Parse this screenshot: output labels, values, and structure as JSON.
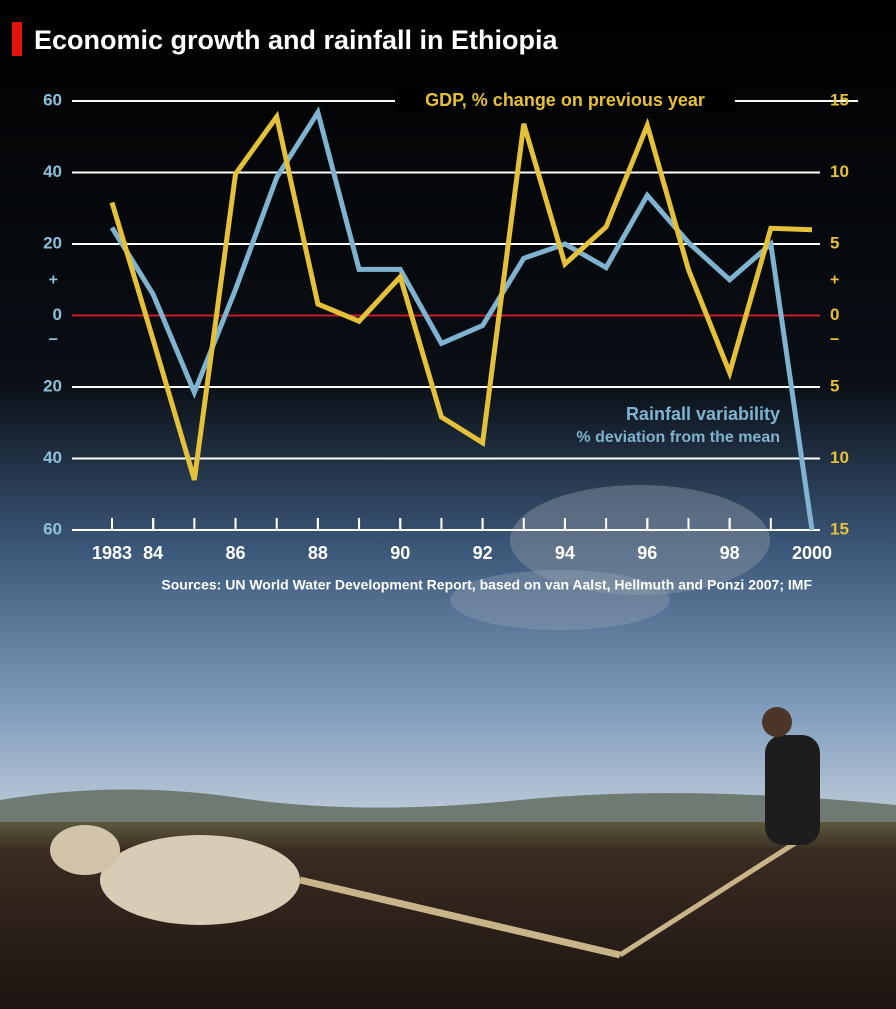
{
  "chart_data": {
    "type": "line",
    "title": "Economic growth and rainfall in Ethiopia",
    "x": [
      1983,
      1984,
      1985,
      1986,
      1987,
      1988,
      1989,
      1990,
      1991,
      1992,
      1993,
      1994,
      1995,
      1996,
      1997,
      1998,
      1999,
      2000
    ],
    "xlim": [
      1983,
      2000
    ],
    "xticks": [
      {
        "value": 1983,
        "label": "1983"
      },
      {
        "value": 1984,
        "label": "84"
      },
      {
        "value": 1986,
        "label": "86"
      },
      {
        "value": 1988,
        "label": "88"
      },
      {
        "value": 1990,
        "label": "90"
      },
      {
        "value": 1992,
        "label": "92"
      },
      {
        "value": 1994,
        "label": "94"
      },
      {
        "value": 1996,
        "label": "96"
      },
      {
        "value": 1998,
        "label": "98"
      },
      {
        "value": 2000,
        "label": "2000"
      }
    ],
    "ylim": [
      -60,
      60
    ],
    "yticks": [
      60,
      40,
      20,
      0,
      {
        "value": -20,
        "label": "20"
      },
      {
        "value": -40,
        "label": "40"
      },
      {
        "value": -60,
        "label": "60"
      }
    ],
    "y2lim": [
      -15,
      15
    ],
    "y2ticks": [
      15,
      10,
      5,
      0,
      {
        "value": -5,
        "label": "5"
      },
      {
        "value": -10,
        "label": "10"
      },
      {
        "value": -15,
        "label": "15"
      }
    ],
    "sign_labels": [
      "+",
      "−"
    ],
    "grid": true,
    "series": [
      {
        "name": "Rainfall variability",
        "color": "#7fb3cf",
        "axis": "y",
        "values": [
          24.6,
          5.9,
          -21.5,
          7.3,
          38.6,
          56.8,
          12.9,
          12.9,
          -7.8,
          -2.8,
          16,
          20,
          13.4,
          33.6,
          20.4,
          10,
          20,
          -60
        ]
      },
      {
        "name": "GDP, % change on previous year",
        "color": "#e5c03a",
        "axis": "y2",
        "values": [
          7.9,
          -1.7,
          -11.5,
          9.9,
          13.9,
          0.8,
          -0.4,
          2.7,
          -7.1,
          -8.9,
          13.4,
          3.6,
          6.2,
          13.3,
          3.2,
          -4.0,
          6.1,
          6.0
        ]
      }
    ],
    "annotation": "% deviation from the mean",
    "source": "Sources: UN World Water Development Report, based on van Aalst, Hellmuth and Ponzi 2007; IMF"
  }
}
